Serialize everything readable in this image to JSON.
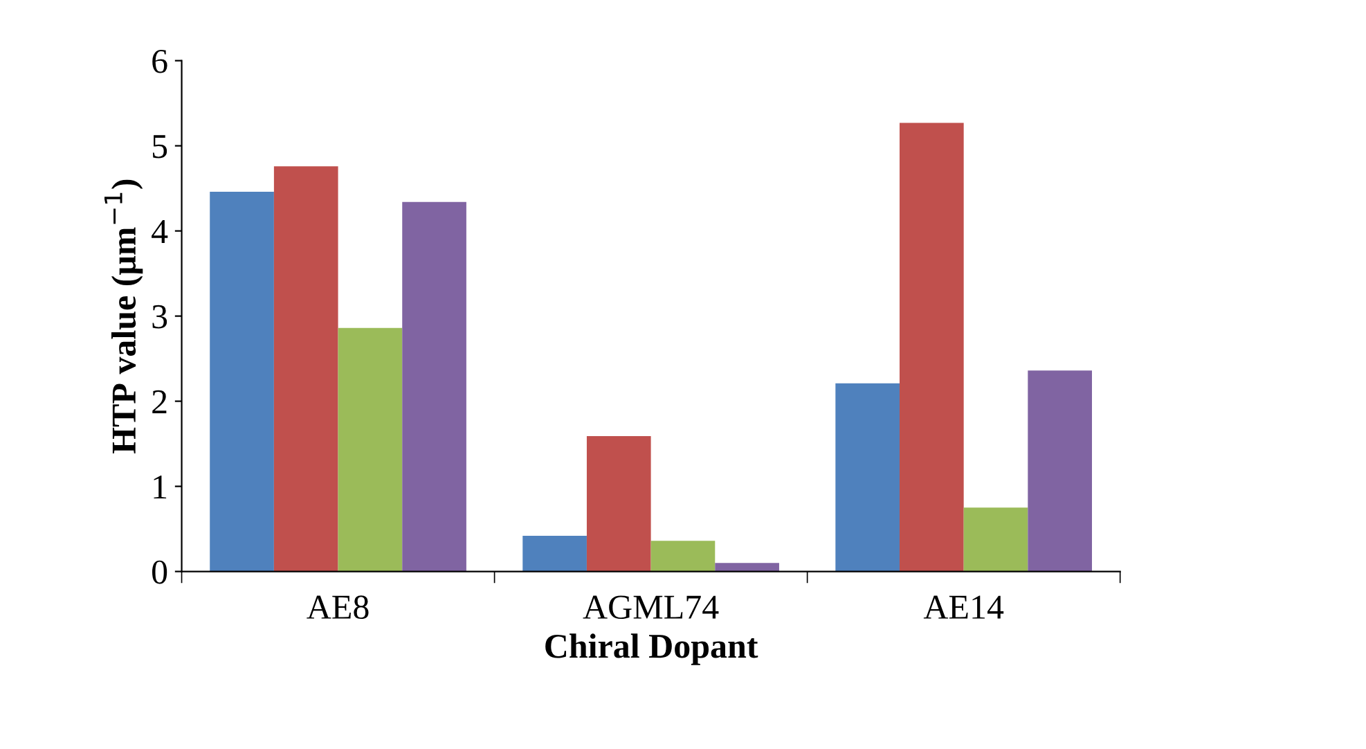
{
  "chart_data": {
    "type": "bar",
    "xlabel": "Chiral Dopant",
    "ylabel": "HTP value (μm$^{−1}$)",
    "categories": [
      "AE8",
      "AGML74",
      "AE14"
    ],
    "series": [
      {
        "color": "#4f81bd",
        "values": [
          4.46,
          0.42,
          2.21
        ]
      },
      {
        "color": "#c0504d",
        "values": [
          4.76,
          1.59,
          5.27
        ]
      },
      {
        "color": "#9bbb59",
        "values": [
          2.86,
          0.36,
          0.75
        ]
      },
      {
        "color": "#8064a2",
        "values": [
          4.34,
          0.1,
          2.36
        ]
      }
    ],
    "ylim": [
      0,
      6
    ],
    "yticks": [
      0,
      1,
      2,
      3,
      4,
      5,
      6
    ],
    "grid": false
  }
}
